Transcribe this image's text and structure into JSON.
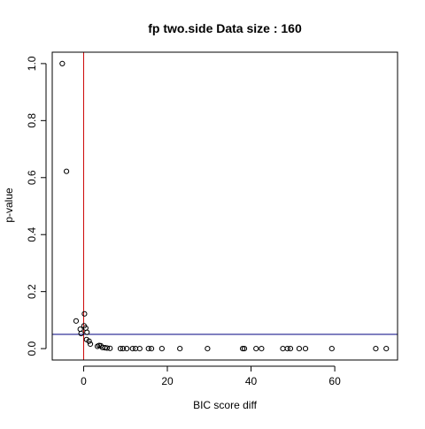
{
  "chart_data": {
    "type": "scatter",
    "title": "fp two.side Data size :  160",
    "xlabel": "BIC score diff",
    "ylabel": "p-value",
    "xlim": [
      -7.5,
      75
    ],
    "ylim": [
      -0.04,
      1.04
    ],
    "x_ticks": [
      0,
      20,
      40,
      60
    ],
    "y_ticks": [
      0.0,
      0.2,
      0.4,
      0.6,
      0.8,
      1.0
    ],
    "x_tick_labels": [
      "0",
      "20",
      "40",
      "60"
    ],
    "y_tick_labels": [
      "0.0",
      "0.2",
      "0.4",
      "0.6",
      "0.8",
      "1.0"
    ],
    "vline": {
      "x": 0,
      "color": "#cc0000"
    },
    "hline": {
      "y": 0.05,
      "color": "#000080"
    },
    "point_color": "#000000",
    "points": [
      {
        "x": -5.1,
        "y": 1.0
      },
      {
        "x": -4.1,
        "y": 0.622
      },
      {
        "x": -1.8,
        "y": 0.097
      },
      {
        "x": -0.8,
        "y": 0.068
      },
      {
        "x": -0.6,
        "y": 0.053
      },
      {
        "x": 0.2,
        "y": 0.122
      },
      {
        "x": 0.1,
        "y": 0.08
      },
      {
        "x": 0.5,
        "y": 0.072
      },
      {
        "x": 0.8,
        "y": 0.057
      },
      {
        "x": 0.7,
        "y": 0.032
      },
      {
        "x": 1.3,
        "y": 0.026
      },
      {
        "x": 1.6,
        "y": 0.016
      },
      {
        "x": 3.3,
        "y": 0.008
      },
      {
        "x": 3.7,
        "y": 0.011
      },
      {
        "x": 4.1,
        "y": 0.01
      },
      {
        "x": 4.5,
        "y": 0.004
      },
      {
        "x": 5.1,
        "y": 0.003
      },
      {
        "x": 5.6,
        "y": 0.002
      },
      {
        "x": 6.3,
        "y": 0.001
      },
      {
        "x": 8.8,
        "y": 0.0
      },
      {
        "x": 9.4,
        "y": 0.0
      },
      {
        "x": 10.3,
        "y": 0.0
      },
      {
        "x": 11.7,
        "y": 0.0
      },
      {
        "x": 12.4,
        "y": 0.0
      },
      {
        "x": 13.4,
        "y": 0.0
      },
      {
        "x": 15.5,
        "y": 0.0
      },
      {
        "x": 16.2,
        "y": 0.0
      },
      {
        "x": 18.7,
        "y": 0.0
      },
      {
        "x": 23.0,
        "y": 0.0
      },
      {
        "x": 29.6,
        "y": 0.0
      },
      {
        "x": 38.0,
        "y": 0.0
      },
      {
        "x": 38.4,
        "y": 0.0
      },
      {
        "x": 41.2,
        "y": 0.0
      },
      {
        "x": 42.5,
        "y": 0.0
      },
      {
        "x": 47.6,
        "y": 0.0
      },
      {
        "x": 48.7,
        "y": 0.0
      },
      {
        "x": 49.4,
        "y": 0.0
      },
      {
        "x": 51.5,
        "y": 0.0
      },
      {
        "x": 53.0,
        "y": 0.0
      },
      {
        "x": 59.3,
        "y": 0.0
      },
      {
        "x": 69.8,
        "y": 0.0
      },
      {
        "x": 72.3,
        "y": 0.0
      }
    ]
  }
}
